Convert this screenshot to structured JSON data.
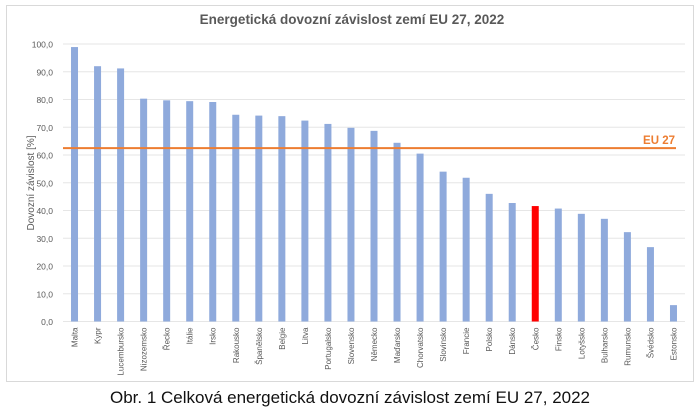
{
  "caption": "Obr. 1 Celková energetická dovozní závislost zemí EU 27, 2022",
  "colors": {
    "bar": "#8faadc",
    "highlight": "#ff0000",
    "eu_line": "#ed7d31",
    "grid": "#e6e6e6",
    "text": "#595959"
  },
  "chart_data": {
    "type": "bar",
    "title": "Energetická dovozní závislost zemí EU 27, 2022",
    "xlabel": "",
    "ylabel": "Dovozní závislost [%]",
    "ylim": [
      0,
      100
    ],
    "yticks": [
      "0,0",
      "10,0",
      "20,0",
      "30,0",
      "40,0",
      "50,0",
      "60,0",
      "70,0",
      "80,0",
      "90,0",
      "100,0"
    ],
    "grid": true,
    "categories": [
      "Malta",
      "Kypr",
      "Lucembursko",
      "Nizozemsko",
      "Řecko",
      "Itálie",
      "Irsko",
      "Rakousko",
      "Španělsko",
      "Belgie",
      "Litva",
      "Portugalsko",
      "Slovensko",
      "Německo",
      "Maďarsko",
      "Chorvatsko",
      "Slovinsko",
      "Francie",
      "Polsko",
      "Dánsko",
      "Česko",
      "Finsko",
      "Lotyšsko",
      "Bulharsko",
      "Rumunsko",
      "Švédsko",
      "Estonsko"
    ],
    "values": [
      98.9,
      92.0,
      91.2,
      80.3,
      79.7,
      79.4,
      79.1,
      74.5,
      74.2,
      74.0,
      72.4,
      71.2,
      69.8,
      68.7,
      64.4,
      60.5,
      54.0,
      51.8,
      46.0,
      42.7,
      41.6,
      40.7,
      38.8,
      37.0,
      32.2,
      26.8,
      5.9
    ],
    "highlight_category": "Česko",
    "reference_line": {
      "label": "EU 27",
      "value": 62.5
    }
  }
}
